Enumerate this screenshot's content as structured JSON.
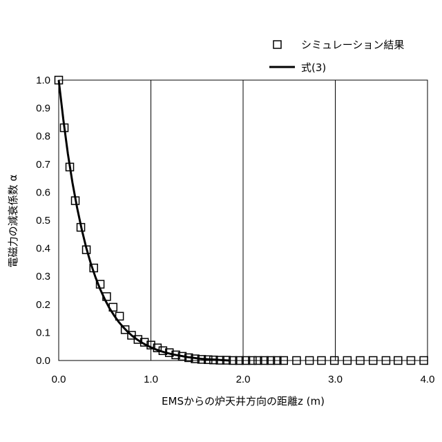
{
  "chart_data": {
    "type": "scatter",
    "xlabel": "EMSからの炉天井方向の距離z (m)",
    "ylabel": "電磁力の減衰係数 α",
    "xlim": [
      0.0,
      4.0
    ],
    "ylim": [
      0.0,
      1.0
    ],
    "x_ticks": [
      "0.0",
      "1.0",
      "2.0",
      "3.0",
      "4.0"
    ],
    "y_ticks": [
      "0.0",
      "0.1",
      "0.2",
      "0.3",
      "0.4",
      "0.5",
      "0.6",
      "0.7",
      "0.8",
      "0.9",
      "1.0"
    ],
    "grid": "vertical",
    "legend_position": "top-right",
    "series": [
      {
        "name": "シミュレーション結果",
        "style": "open-square-markers",
        "x": [
          0.0,
          0.06,
          0.12,
          0.18,
          0.24,
          0.3,
          0.38,
          0.45,
          0.52,
          0.59,
          0.66,
          0.72,
          0.79,
          0.86,
          0.93,
          1.0,
          1.07,
          1.13,
          1.2,
          1.27,
          1.34,
          1.41,
          1.48,
          1.55,
          1.62,
          1.68,
          1.75,
          1.82,
          1.89,
          1.96,
          2.03,
          2.1,
          2.16,
          2.23,
          2.3,
          2.37,
          2.44,
          2.58,
          2.72,
          2.85,
          2.99,
          3.13,
          3.27,
          3.41,
          3.55,
          3.68,
          3.82,
          3.96
        ],
        "y": [
          1.0,
          0.83,
          0.69,
          0.57,
          0.475,
          0.395,
          0.33,
          0.272,
          0.228,
          0.19,
          0.158,
          0.11,
          0.09,
          0.075,
          0.065,
          0.055,
          0.045,
          0.035,
          0.028,
          0.02,
          0.015,
          0.01,
          0.006,
          0.004,
          0.003,
          0.002,
          0.001,
          0.001,
          0.0,
          0.0,
          0.0,
          0.0,
          0.0,
          0.0,
          0.0,
          0.0,
          0.0,
          0.0,
          0.0,
          0.0,
          0.0,
          0.0,
          0.0,
          0.0,
          0.0,
          0.0,
          0.0,
          0.0
        ]
      },
      {
        "name": "式(3)",
        "style": "solid-line",
        "color": "#000000",
        "x": [
          0.0,
          0.05,
          0.1,
          0.15,
          0.2,
          0.25,
          0.3,
          0.35,
          0.4,
          0.45,
          0.5,
          0.55,
          0.6,
          0.65,
          0.7,
          0.75,
          0.8,
          0.85,
          0.9,
          0.95,
          1.0,
          1.05,
          1.1,
          1.15,
          1.2,
          1.25,
          1.3,
          1.35,
          1.4,
          1.45,
          1.5,
          1.55,
          1.6,
          1.65,
          1.7,
          1.75,
          1.8,
          1.85
        ],
        "y": [
          1.0,
          0.859,
          0.737,
          0.633,
          0.544,
          0.467,
          0.401,
          0.344,
          0.296,
          0.254,
          0.218,
          0.187,
          0.161,
          0.138,
          0.119,
          0.102,
          0.087,
          0.075,
          0.064,
          0.055,
          0.047,
          0.04,
          0.034,
          0.029,
          0.025,
          0.021,
          0.018,
          0.015,
          0.012,
          0.01,
          0.008,
          0.006,
          0.005,
          0.004,
          0.003,
          0.002,
          0.001,
          0.0
        ]
      }
    ]
  },
  "legend": {
    "sim_label": "シミュレーション結果",
    "eq_label": "式(3)"
  }
}
